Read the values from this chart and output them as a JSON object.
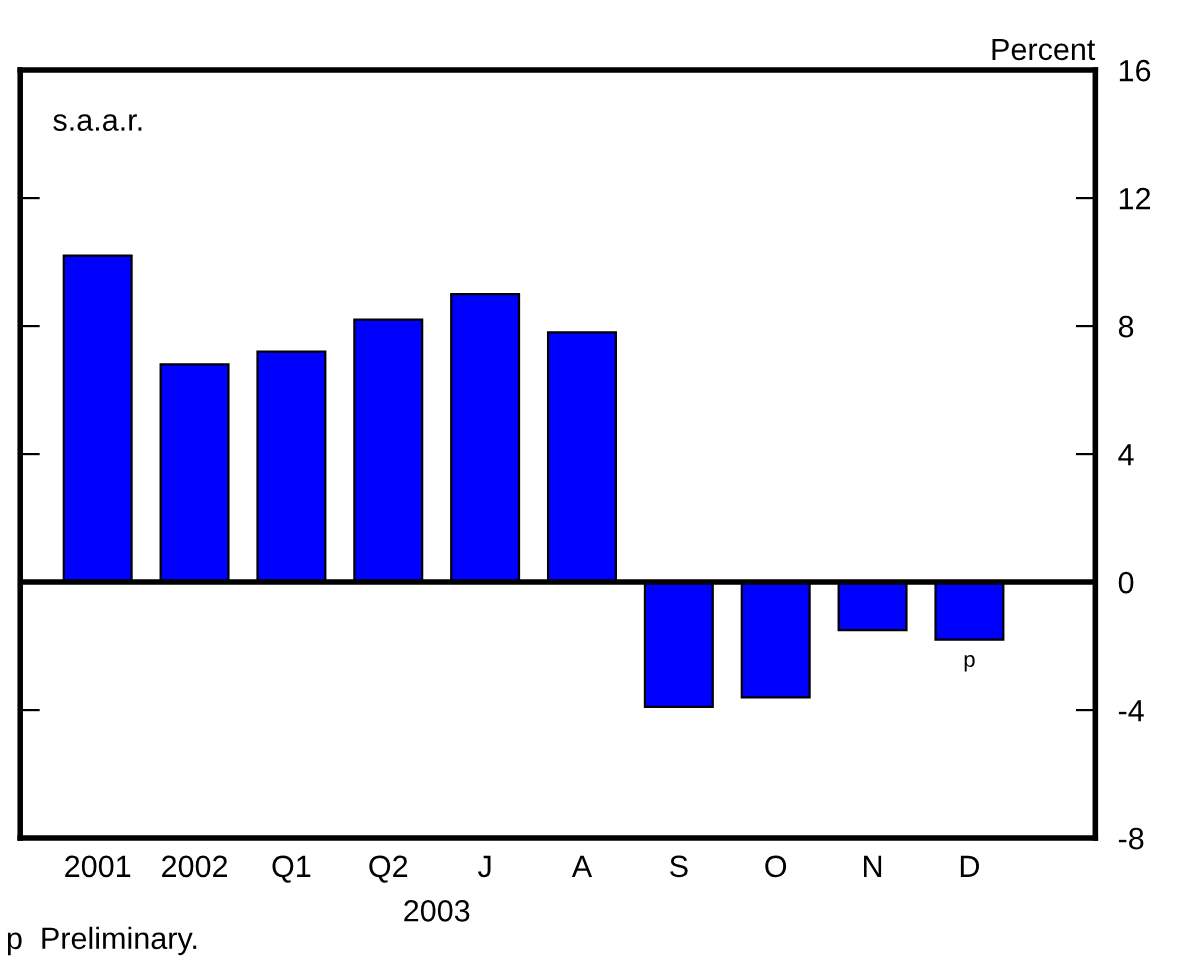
{
  "chart_data": {
    "type": "bar",
    "ylabel": "Percent",
    "categories": [
      "2001",
      "2002",
      "Q1",
      "Q2",
      "J",
      "A",
      "S",
      "O",
      "N",
      "D"
    ],
    "values": [
      10.2,
      6.8,
      7.2,
      8.2,
      9.0,
      7.8,
      -3.9,
      -3.6,
      -1.5,
      -1.8
    ],
    "color": "#0000ff",
    "ylim": [
      -8,
      16
    ],
    "yticks": [
      -8,
      -4,
      0,
      4,
      8,
      12,
      16
    ],
    "grid": false,
    "tick_labels": "y",
    "ref_lines": [
      {
        "axis": "y",
        "value": 0,
        "color": "#000000"
      }
    ],
    "annotations": [
      "s.a.a.r.",
      "2003",
      {
        "text": "p",
        "x": "D",
        "y": -1.8
      },
      "p  Preliminary."
    ]
  }
}
